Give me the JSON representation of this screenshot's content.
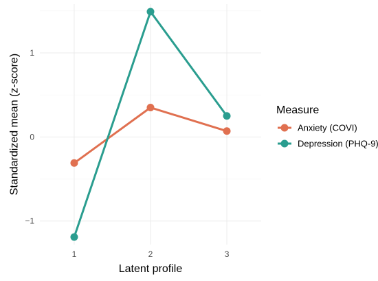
{
  "chart_data": {
    "type": "line",
    "title": "",
    "xlabel": "Latent profile",
    "ylabel": "Standardized mean (z-score)",
    "x": [
      1,
      2,
      3
    ],
    "x_ticks": [
      "1",
      "2",
      "3"
    ],
    "y_ticks": [
      -1,
      0,
      1
    ],
    "y_tick_labels": [
      "−1",
      "0",
      "1"
    ],
    "xlim": [
      0.55,
      3.45
    ],
    "ylim": [
      -1.28,
      1.58
    ],
    "grid": true,
    "legend": {
      "title": "Measure",
      "position": "right"
    },
    "series": [
      {
        "name": "Anxiety (COVI)",
        "color": "#E07050",
        "values": [
          -0.31,
          0.35,
          0.07
        ]
      },
      {
        "name": "Depression (PHQ-9)",
        "color": "#2A9D8F",
        "values": [
          -1.19,
          1.49,
          0.25
        ]
      }
    ]
  }
}
